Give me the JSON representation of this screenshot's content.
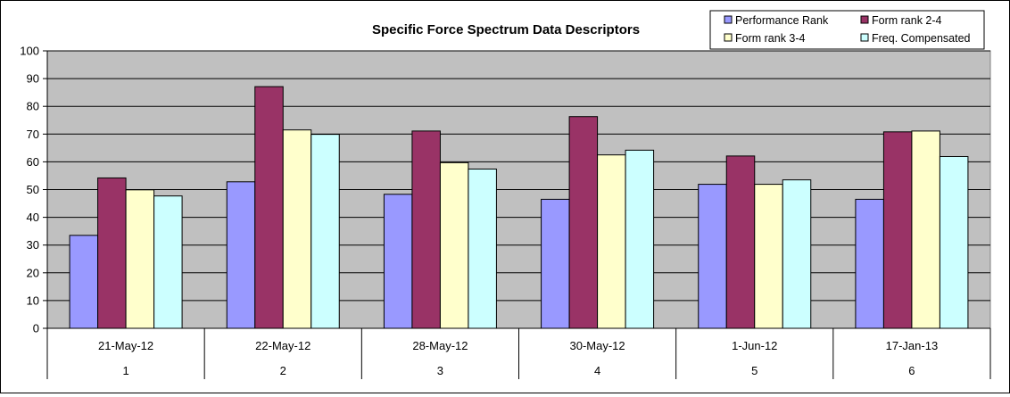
{
  "chart_data": {
    "type": "bar",
    "title": "Specific Force Spectrum Data Descriptors",
    "xlabel": "",
    "ylabel": "",
    "ylim": [
      0,
      100
    ],
    "yticks": [
      0,
      10,
      20,
      30,
      40,
      50,
      60,
      70,
      80,
      90,
      100
    ],
    "grid": true,
    "legend_position": "top-right",
    "categories": [
      "21-May-12",
      "22-May-12",
      "28-May-12",
      "30-May-12",
      "1-Jun-12",
      "17-Jan-13"
    ],
    "category_numbers": [
      "1",
      "2",
      "3",
      "4",
      "5",
      "6"
    ],
    "series": [
      {
        "name": "Performance Rank",
        "color": "#9999FF",
        "values": [
          33.5,
          52.8,
          48.3,
          46.5,
          51.9,
          46.5
        ]
      },
      {
        "name": "Form rank 2-4",
        "color": "#993366",
        "values": [
          54.2,
          87.1,
          71.1,
          76.3,
          62.1,
          70.8
        ]
      },
      {
        "name": "Form rank 3-4",
        "color": "#FFFFCC",
        "values": [
          49.9,
          71.5,
          59.7,
          62.5,
          51.9,
          71.1
        ]
      },
      {
        "name": "Freq. Compensated",
        "color": "#CCFFFF",
        "values": [
          47.7,
          69.9,
          57.4,
          64.2,
          53.5,
          61.9
        ]
      }
    ],
    "plot_background": "#C0C0C0"
  }
}
